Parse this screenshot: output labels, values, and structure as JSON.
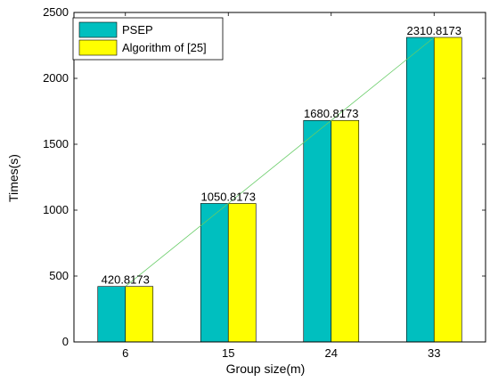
{
  "chart_data": {
    "type": "bar",
    "categories": [
      "6",
      "15",
      "24",
      "33"
    ],
    "series": [
      {
        "name": "PSEP",
        "values": [
          420.8173,
          1050.8173,
          1680.8173,
          2310.8173
        ],
        "color": "#00bfbf"
      },
      {
        "name": "Algorithm of [25]",
        "values": [
          420.8173,
          1050.8173,
          1680.8173,
          2310.8173
        ],
        "color": "#ffff00"
      }
    ],
    "data_labels": [
      "420.8173",
      "1050.8173",
      "1680.8173",
      "2310.8173"
    ],
    "y_ticks": [
      "0",
      "500",
      "1000",
      "1500",
      "2000",
      "2500"
    ],
    "title": "",
    "xlabel": "Group size(m)",
    "ylabel": "Times(s)",
    "ylim": [
      0,
      2500
    ],
    "grid": false,
    "legend_position": "top-left",
    "trend_line_color": "#66cc66"
  }
}
